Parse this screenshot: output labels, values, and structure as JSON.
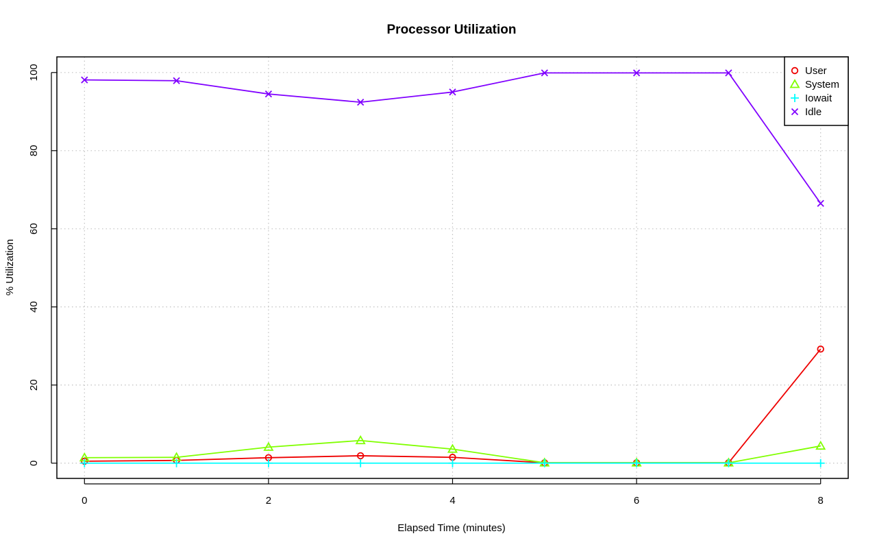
{
  "chart_data": {
    "type": "line",
    "title": "Processor Utilization",
    "xlabel": "Elapsed Time (minutes)",
    "ylabel": "% Utilization",
    "xlim": [
      -0.3,
      8.3
    ],
    "ylim": [
      -3.9,
      104.0
    ],
    "x_ticks": [
      0,
      2,
      4,
      6,
      8
    ],
    "y_ticks": [
      0,
      20,
      40,
      60,
      80,
      100
    ],
    "grid": true,
    "legend_position": "top-right",
    "x": [
      0,
      1,
      2,
      3,
      4,
      5,
      6,
      7,
      8
    ],
    "series": [
      {
        "name": "User",
        "color": "#ee0000",
        "marker": "circle",
        "values": [
          0.5,
          0.7,
          1.4,
          1.9,
          1.5,
          0.1,
          0.1,
          0.1,
          29.2
        ]
      },
      {
        "name": "System",
        "color": "#80ff00",
        "marker": "triangle",
        "values": [
          1.4,
          1.5,
          4.1,
          5.8,
          3.6,
          0.1,
          0.1,
          0.1,
          4.4
        ]
      },
      {
        "name": "Iowait",
        "color": "#00ffff",
        "marker": "plus",
        "values": [
          0.0,
          0.0,
          0.0,
          0.0,
          0.0,
          0.0,
          0.0,
          0.0,
          0.0
        ]
      },
      {
        "name": "Idle",
        "color": "#8000ff",
        "marker": "cross",
        "values": [
          98.1,
          97.9,
          94.5,
          92.4,
          95.0,
          99.9,
          99.9,
          99.9,
          66.5
        ]
      }
    ]
  }
}
